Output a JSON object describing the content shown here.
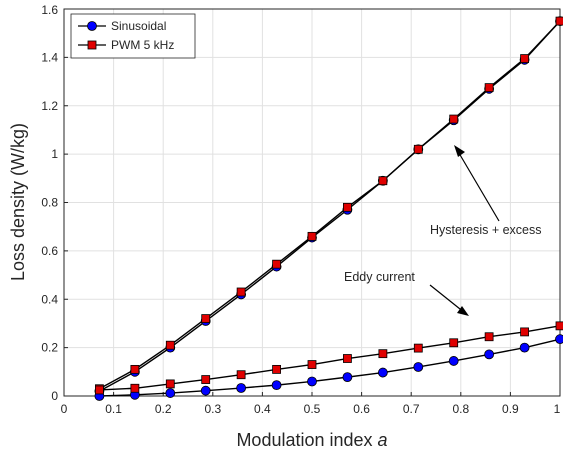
{
  "chart_data": {
    "type": "line",
    "title": "",
    "xlabel": "Modulation index",
    "xlabel_var": "a",
    "ylabel": "Loss density (W/kg)",
    "xlim": [
      0,
      1
    ],
    "ylim": [
      0,
      1.6
    ],
    "xticks": [
      "0",
      "0.1",
      "0.2",
      "0.3",
      "0.4",
      "0.5",
      "0.6",
      "0.7",
      "0.8",
      "0.9",
      "1"
    ],
    "yticks": [
      "0",
      "0.2",
      "0.4",
      "0.6",
      "0.8",
      "1",
      "1.2",
      "1.4",
      "1.6"
    ],
    "grid": true,
    "legend_position": "top-left",
    "x": [
      0.0714,
      0.1429,
      0.2143,
      0.2857,
      0.3571,
      0.4286,
      0.5,
      0.5714,
      0.6429,
      0.7143,
      0.7857,
      0.8571,
      0.9286,
      1.0
    ],
    "series": [
      {
        "name": "Sinusoidal",
        "component": "Hysteresis + excess",
        "color": "#0000ff",
        "marker": "circle",
        "values": [
          0.02,
          0.1,
          0.2,
          0.31,
          0.42,
          0.535,
          0.655,
          0.77,
          0.89,
          1.02,
          1.14,
          1.27,
          1.39,
          1.55
        ]
      },
      {
        "name": "PWM 5 kHz",
        "component": "Hysteresis + excess",
        "color": "#e00000",
        "marker": "square",
        "values": [
          0.03,
          0.11,
          0.21,
          0.32,
          0.43,
          0.545,
          0.66,
          0.78,
          0.89,
          1.02,
          1.145,
          1.275,
          1.395,
          1.55
        ]
      },
      {
        "name": "Sinusoidal",
        "component": "Eddy current",
        "color": "#0000ff",
        "marker": "circle",
        "values": [
          0.0,
          0.005,
          0.012,
          0.022,
          0.033,
          0.045,
          0.06,
          0.078,
          0.097,
          0.12,
          0.145,
          0.172,
          0.2,
          0.235
        ]
      },
      {
        "name": "PWM 5 kHz",
        "component": "Eddy current",
        "color": "#e00000",
        "marker": "square",
        "values": [
          0.025,
          0.032,
          0.05,
          0.068,
          0.088,
          0.11,
          0.13,
          0.155,
          0.175,
          0.198,
          0.22,
          0.245,
          0.265,
          0.29
        ]
      }
    ],
    "legend": [
      "Sinusoidal",
      "PWM 5 kHz"
    ],
    "annotations": [
      "Hysteresis + excess",
      "Eddy current"
    ]
  }
}
